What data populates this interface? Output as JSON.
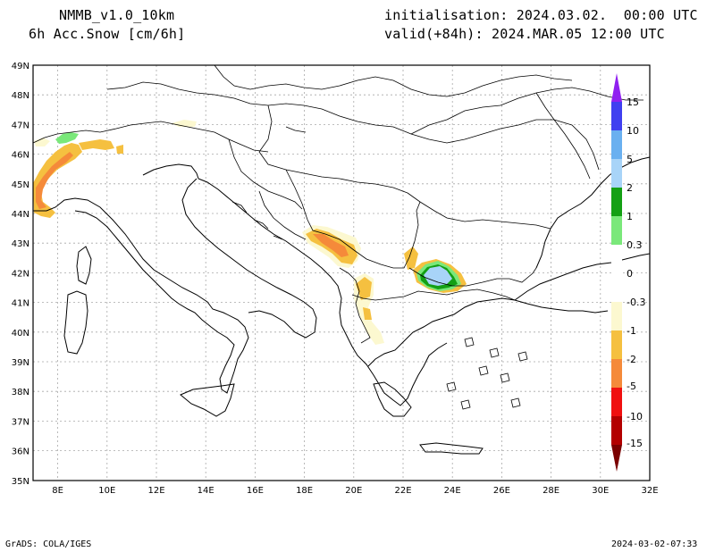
{
  "header": {
    "model": "NMMB_v1.0_10km",
    "field": "6h Acc.Snow [cm/6h]",
    "init": "initialisation: 2024.03.02.  00:00 UTC",
    "valid": "valid(+84h): 2024.MAR.05 12:00 UTC"
  },
  "footer": {
    "credit": "GrADS: COLA/IGES",
    "stamp": "2024-03-02-07:33"
  },
  "map": {
    "lon_range": [
      7,
      32
    ],
    "lat_range": [
      35,
      49
    ],
    "lat_labels": [
      "49N",
      "48N",
      "47N",
      "46N",
      "45N",
      "44N",
      "43N",
      "42N",
      "41N",
      "40N",
      "39N",
      "38N",
      "37N",
      "36N",
      "35N"
    ],
    "lon_labels": [
      "8E",
      "10E",
      "12E",
      "14E",
      "16E",
      "18E",
      "20E",
      "22E",
      "24E",
      "26E",
      "28E",
      "30E",
      "32E"
    ],
    "colors": {
      "c_neg15": "#7a0000",
      "c_neg10": "#b30000",
      "c_neg5": "#f01010",
      "c_neg2": "#f58a3a",
      "c_neg1": "#f5c040",
      "c_neg03": "#fcf8d0",
      "c_03": "#7ae87a",
      "c_1": "#14a014",
      "c_2": "#a8d4f8",
      "c_5": "#6ab0f0",
      "c_10": "#4040f0",
      "c_15": "#9020f0"
    }
  },
  "colorbar": {
    "labels": [
      "15",
      "10",
      "5",
      "2",
      "1",
      "0.3",
      "0",
      "-0.3",
      "-1",
      "-2",
      "-5",
      "-10",
      "-15"
    ]
  }
}
